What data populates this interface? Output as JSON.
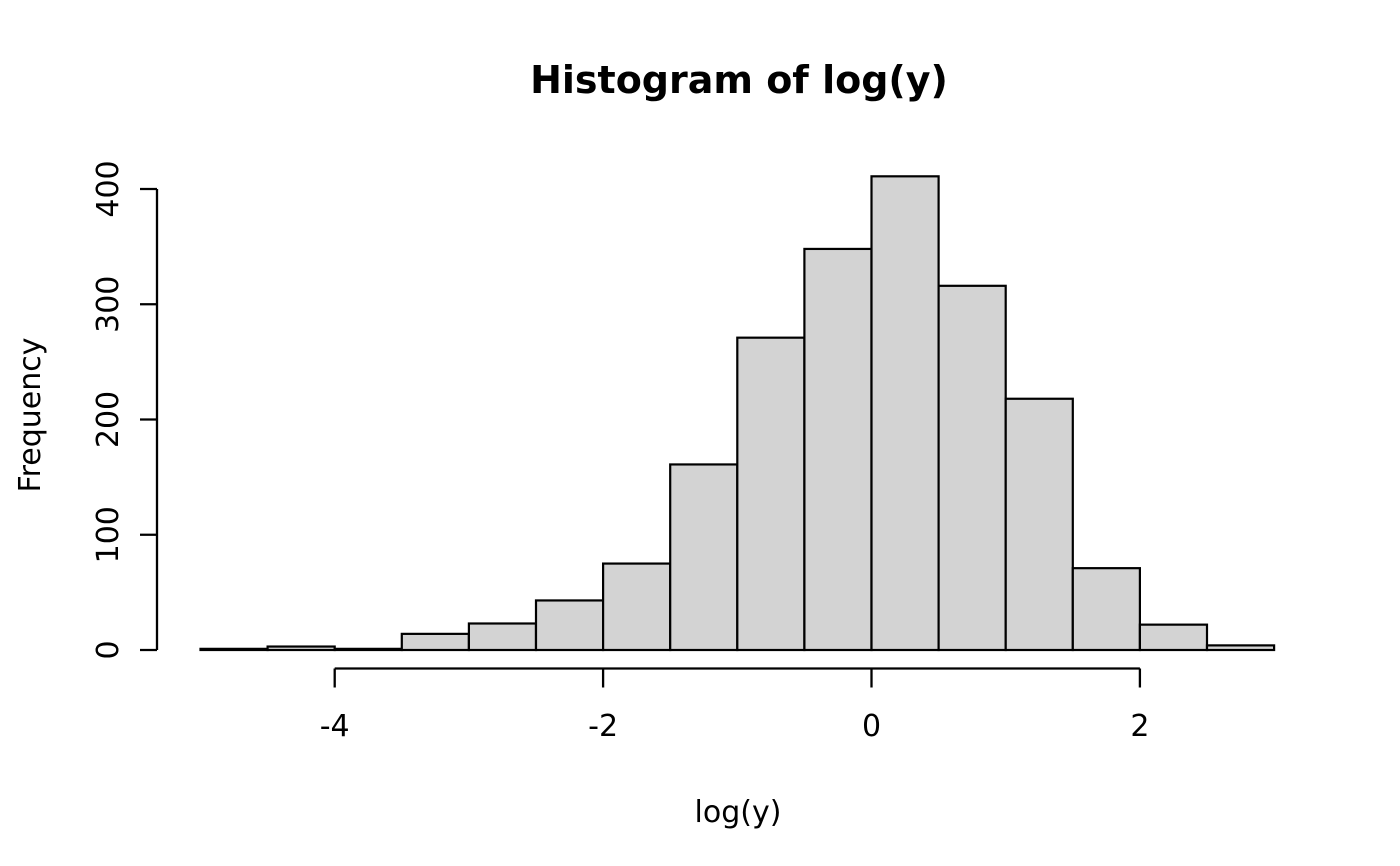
{
  "chart_data": {
    "type": "bar",
    "subtype": "histogram",
    "title": "Histogram of log(y)",
    "xlabel": "log(y)",
    "ylabel": "Frequency",
    "breaks": [
      -5,
      -4.5,
      -4,
      -3.5,
      -3,
      -2.5,
      -2,
      -1.5,
      -1,
      -0.5,
      0,
      0.5,
      1,
      1.5,
      2,
      2.5,
      3
    ],
    "counts": [
      1,
      3,
      1,
      14,
      23,
      43,
      75,
      161,
      271,
      348,
      411,
      316,
      218,
      71,
      22,
      4
    ],
    "x_ticks": [
      -4,
      -2,
      0,
      2
    ],
    "x_tick_labels": [
      "-4",
      "-2",
      "0",
      "2"
    ],
    "y_ticks": [
      0,
      100,
      200,
      300,
      400
    ],
    "y_tick_labels": [
      "0",
      "100",
      "200",
      "300",
      "400"
    ],
    "xlim": [
      -5,
      3
    ],
    "ylim": [
      0,
      400
    ],
    "grid": false,
    "legend": "none",
    "bar_fill": "#d3d3d3",
    "bar_stroke": "#000000",
    "axis_color": "#000000",
    "background": "#ffffff"
  }
}
